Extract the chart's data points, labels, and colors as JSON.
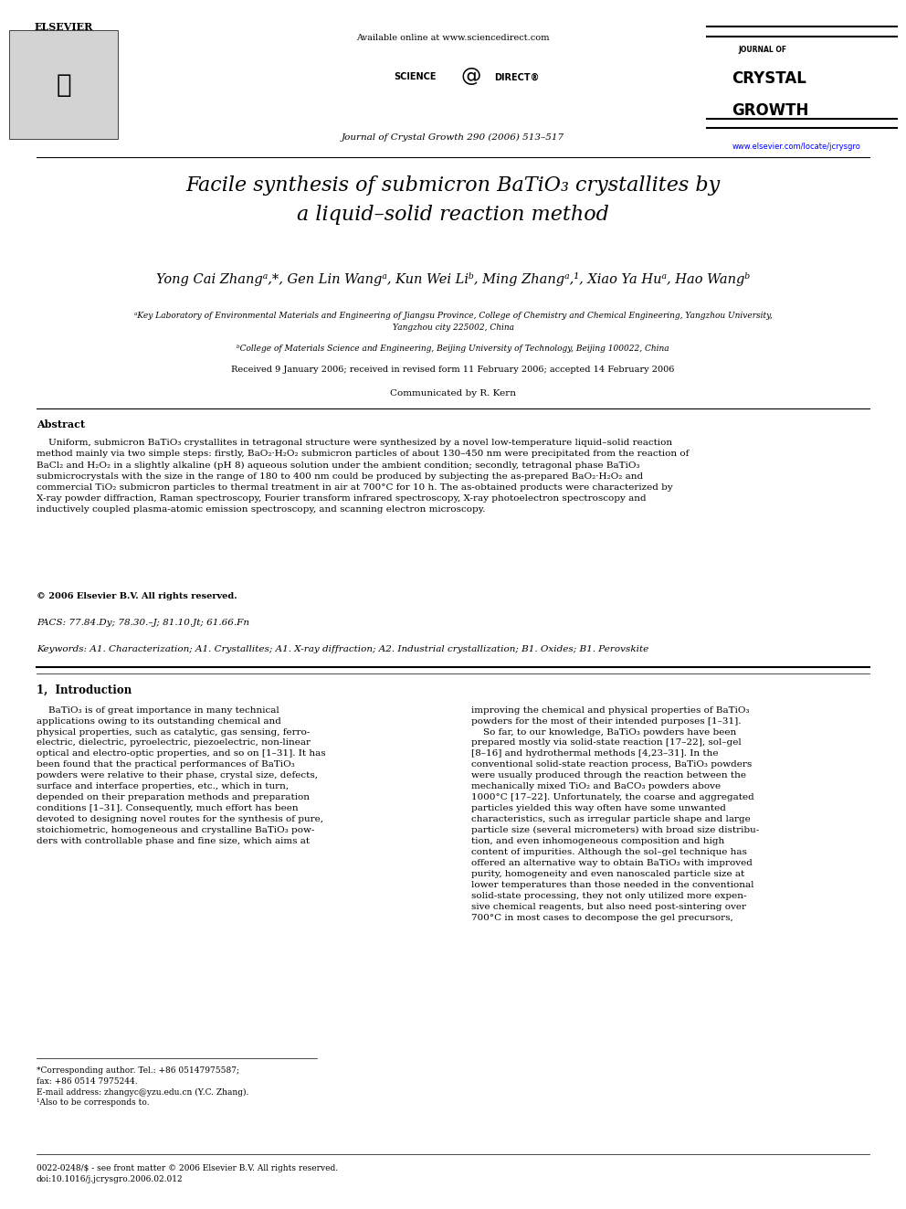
{
  "page_bg": "#ffffff",
  "top_header": {
    "available_online": "Available online at www.sciencedirect.com",
    "journal_line": "Journal of Crystal Growth 290 (2006) 513–517",
    "url": "www.elsevier.com/locate/jcrysgro",
    "journal_name_small": "JOURNAL OF",
    "journal_name_large": "CRYSTAL\nGROWTH"
  },
  "title": "Facile synthesis of submicron BaTiO₃ crystallites by\na liquid–solid reaction method",
  "authors": "Yong Cai Zhangᵃ,*, Gen Lin Wangᵃ, Kun Wei Liᵇ, Ming Zhangᵃ,¹, Xiao Ya Huᵃ, Hao Wangᵇ",
  "affil_a": "ᵃKey Laboratory of Environmental Materials and Engineering of Jiangsu Province, College of Chemistry and Chemical Engineering, Yangzhou University,\nYangzhou city 225002, China",
  "affil_b": "ᵇCollege of Materials Science and Engineering, Beijing University of Technology, Beijing 100022, China",
  "received": "Received 9 January 2006; received in revised form 11 February 2006; accepted 14 February 2006",
  "communicated": "Communicated by R. Kern",
  "abstract_title": "Abstract",
  "abstract_text": "    Uniform, submicron BaTiO₃ crystallites in tetragonal structure were synthesized by a novel low-temperature liquid–solid reaction method mainly via two simple steps: firstly, BaO₂·H₂O₂ submicron particles of about 130–450 nm were precipitated from the reaction of BaCl₂ and H₂O₂ in a slightly alkaline (pH 8) aqueous solution under the ambient condition; secondly, tetragonal phase BaTiO₃ submicrocrystals with the size in the range of 180 to 400 nm could be produced by subjecting the as-prepared BaO₂·H₂O₂ and commercial TiO₂ submicron particles to thermal treatment in air at 700°C for 10 h. The as-obtained products were characterized by X-ray powder diffraction, Raman spectroscopy, Fourier transform infrared spectroscopy, X-ray photoelectron spectroscopy and inductively coupled plasma-atomic emission spectroscopy, and scanning electron microscopy.",
  "copyright": "© 2006 Elsevier B.V. All rights reserved.",
  "pacs": "PACS: 77.84.Dy; 78.30.–J; 81.10.Jt; 61.66.Fn",
  "keywords": "Keywords: A1. Characterization; A1. Crystallites; A1. X-ray diffraction; A2. Industrial crystallization; B1. Oxides; B1. Perovskite",
  "section1_title": "1,  Introduction",
  "section1_col1": "    BaTiO₃ is of great importance in many technical applications owing to its outstanding chemical and physical properties, such as catalytic, gas sensing, ferro-electric, dielectric, pyroelectric, piezoelectric, non-linear optical and electro-optic properties, and so on [1–31]. It has been found that the practical performances of BaTiO₃ powders were relative to their phase, crystal size, defects, surface and interface properties, etc., which in turn, depended on their preparation methods and preparation conditions [1–31]. Consequently, much effort has been devoted to designing novel routes for the synthesis of pure, stoichiometric, homogeneous and crystalline BaTiO₃ pow-ders with controllable phase and fine size, which aims at",
  "section1_col2": "improving the chemical and physical properties of BaTiO₃ powders for the most of their intended purposes [1–31].\n    So far, to our knowledge, BaTiO₃ powders have been prepared mostly via solid-state reaction [17–22], sol–gel [8–16] and hydrothermal methods [4,23–31]. In the conventional solid-state reaction process, BaTiO₃ powders were usually produced through the reaction between the mechanically mixed TiO₂ and BaCO₃ powders above 1000°C [17–22]. Unfortunately, the coarse and aggregated particles yielded this way often have some unwanted characteristics, such as irregular particle shape and large particle size (several micrometers) with broad size distribu-tion, and even inhomogeneous composition and high content of impurities. Although the sol–gel technique has offered an alternative way to obtain BaTiO₃ with improved purity, homogeneity and even nanoscaled particle size at lower temperatures than those needed in the conventional solid-state processing, they not only utilized more expen-sive chemical reagents, but also need post-sintering over 700°C in most cases to decompose the gel precursors,",
  "footnote_star": "*Corresponding author. Tel.: +86 05147975587;\nfax: +86 0514 7975244.\nE-mail address: zhangyc@yzu.edu.cn (Y.C. Zhang).\n¹Also to be corresponds to.",
  "footer_left": "0022-0248/$ - see front matter © 2006 Elsevier B.V. All rights reserved.\ndoi:10.1016/j.jcrysgro.2006.02.012"
}
